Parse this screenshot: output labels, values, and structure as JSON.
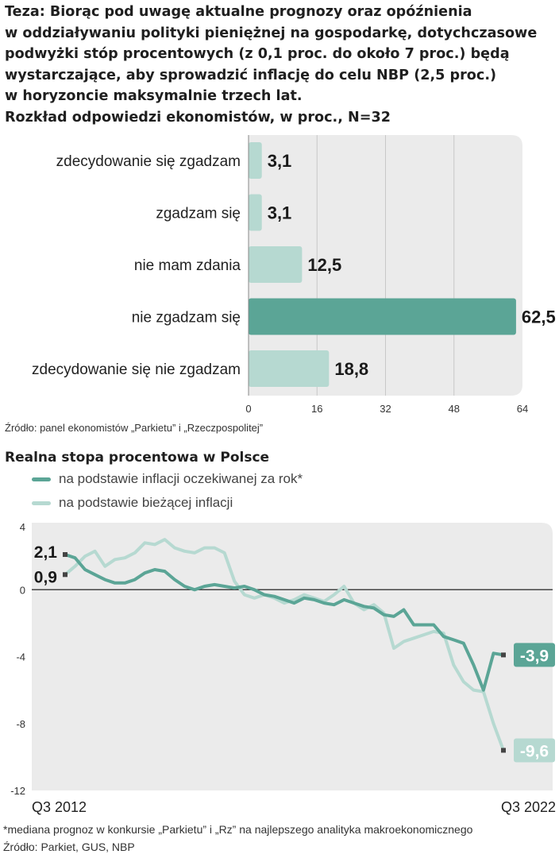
{
  "title_lines": [
    "Teza: Biorąc pod uwagę aktualne prognozy oraz opóźnienia",
    "w oddziaływaniu polityki pieniężnej na gospodarkę, dotychczasowe",
    "podwyżki stóp procentowych (z 0,1 proc. do około 7 proc.) będą",
    "wystarczające, aby sprowadzić inflację do celu NBP (2,5 proc.)",
    "w horyzoncie maksymalnie trzech lat.",
    "Rozkład odpowiedzi ekonomistów, w proc., N=32"
  ],
  "source1": "Źródło: panel ekonomistów „Parkietu” i „Rzeczpospolitej”",
  "line_title": "Realna stopa procentowa w Polsce",
  "footnote": "*mediana prognoz w konkursie „Parkietu” i „Rz” na najlepszego analityka makroekonomicznego",
  "source2": "Źródło:  Parkiet, GUS, NBP",
  "colors": {
    "dark": "#5ba596",
    "light": "#b6d9d1",
    "panel": "#ebebeb",
    "axis": "#444444"
  },
  "chart_data": [
    {
      "type": "bar",
      "orientation": "horizontal",
      "title": "Rozkład odpowiedzi ekonomistów, w proc., N=32",
      "categories": [
        "zdecydowanie się zgadzam",
        "zgadzam się",
        "nie mam zdania",
        "nie zgadzam się",
        "zdecydowanie się nie zgadzam"
      ],
      "values": [
        3.1,
        3.1,
        12.5,
        62.5,
        18.8
      ],
      "value_labels": [
        "3,1",
        "3,1",
        "12,5",
        "62,5",
        "18,8"
      ],
      "highlight_index": 3,
      "xlim": [
        0,
        64
      ],
      "xticks": [
        0,
        16,
        32,
        48,
        64
      ],
      "grid": true
    },
    {
      "type": "line",
      "title": "Realna stopa procentowa w Polsce",
      "x_labels": [
        "Q3 2012",
        "Q3 2022"
      ],
      "ylim": [
        -12,
        4
      ],
      "yticks": [
        4,
        0,
        -4,
        -8,
        -12
      ],
      "series": [
        {
          "name": "na podstawie inflacji oczekiwanej za rok*",
          "style": "dark",
          "start_label": "2,1",
          "end_label": "-3,9",
          "values": [
            2.1,
            1.9,
            1.2,
            0.9,
            0.6,
            0.4,
            0.4,
            0.6,
            1.0,
            1.2,
            1.1,
            0.6,
            0.2,
            0.0,
            0.2,
            0.3,
            0.2,
            0.1,
            0.2,
            0.0,
            -0.3,
            -0.4,
            -0.6,
            -0.8,
            -0.5,
            -0.6,
            -0.8,
            -0.9,
            -0.6,
            -0.8,
            -1.0,
            -1.1,
            -1.5,
            -1.6,
            -1.2,
            -2.1,
            -2.1,
            -2.1,
            -2.8,
            -3.0,
            -3.2,
            -4.5,
            -6.0,
            -3.8,
            -3.9
          ]
        },
        {
          "name": "na podstawie bieżącej inflacji",
          "style": "light",
          "start_label": "0,9",
          "end_label": "-9,6",
          "values": [
            0.9,
            1.4,
            2.0,
            2.3,
            1.4,
            1.8,
            1.9,
            2.2,
            2.8,
            2.7,
            3.0,
            2.5,
            2.3,
            2.2,
            2.5,
            2.5,
            2.2,
            0.5,
            -0.3,
            -0.5,
            -0.3,
            -0.5,
            -0.8,
            -0.6,
            -0.3,
            -0.5,
            -0.7,
            -0.3,
            0.2,
            -0.8,
            -1.2,
            -0.9,
            -1.4,
            -3.5,
            -3.1,
            -2.9,
            -2.7,
            -2.5,
            -2.6,
            -4.5,
            -5.5,
            -6.0,
            -6.1,
            -8.0,
            -9.6
          ]
        }
      ]
    }
  ]
}
